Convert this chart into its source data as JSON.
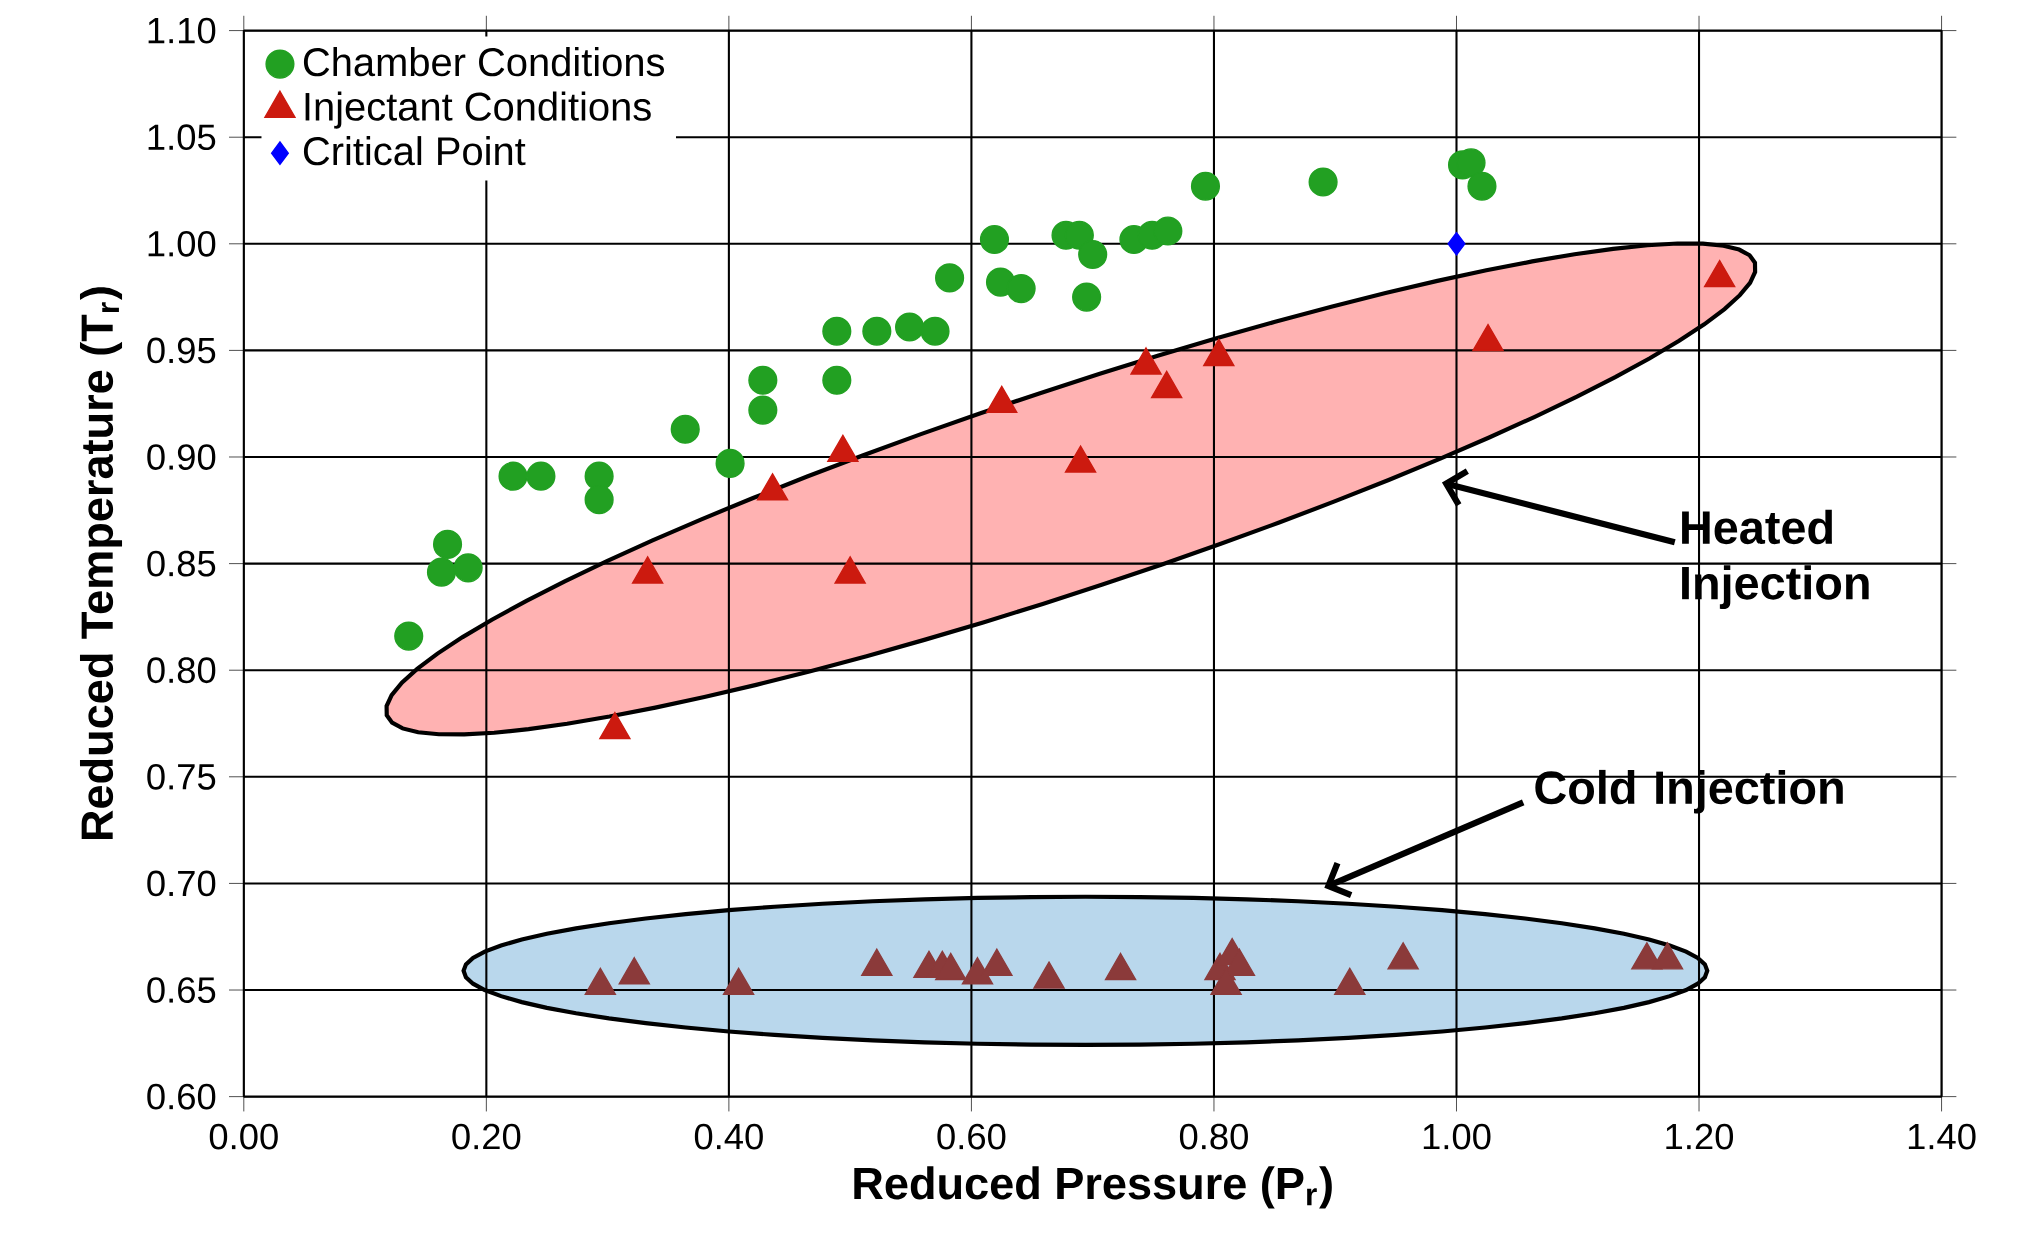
{
  "chart_data": {
    "type": "scatter",
    "xlabel": "Reduced Pressure (P$_{r}$)",
    "ylabel": "Reduced Temperature (T$_{r}$)",
    "xlim": [
      0,
      1.4
    ],
    "ylim": [
      0.6,
      1.1
    ],
    "xticks": [
      {
        "value": 0,
        "label": "0.00"
      },
      {
        "value": 0.2,
        "label": "0.20"
      },
      {
        "value": 0.4,
        "label": "0.40"
      },
      {
        "value": 0.6,
        "label": "0.60"
      },
      {
        "value": 0.8,
        "label": "0.80"
      },
      {
        "value": 1.0,
        "label": "1.00"
      },
      {
        "value": 1.2,
        "label": "1.20"
      },
      {
        "value": 1.4,
        "label": "1.40"
      }
    ],
    "yticks": [
      {
        "value": 0.6,
        "label": "0.60"
      },
      {
        "value": 0.65,
        "label": "0.65"
      },
      {
        "value": 0.7,
        "label": "0.70"
      },
      {
        "value": 0.75,
        "label": "0.75"
      },
      {
        "value": 0.8,
        "label": "0.80"
      },
      {
        "value": 0.85,
        "label": "0.85"
      },
      {
        "value": 0.9,
        "label": "0.90"
      },
      {
        "value": 0.95,
        "label": "0.95"
      },
      {
        "value": 1.0,
        "label": "1.00"
      },
      {
        "value": 1.05,
        "label": "1.05"
      },
      {
        "value": 1.1,
        "label": "1.10"
      }
    ],
    "grid": true,
    "legend": "top left",
    "series": [
      {
        "name": "Chamber Conditions",
        "color": "#22a022",
        "marker": "circle",
        "x": [
          0.136,
          0.163,
          0.168,
          0.185,
          0.222,
          0.245,
          0.293,
          0.293,
          0.364,
          0.401,
          0.428,
          0.428,
          0.489,
          0.489,
          0.522,
          0.549,
          0.57,
          0.582,
          0.619,
          0.624,
          0.641,
          0.678,
          0.689,
          0.7,
          0.695,
          0.734,
          0.749,
          0.762,
          0.793,
          0.89,
          1.005,
          1.012,
          1.021
        ],
        "values": [
          0.816,
          0.846,
          0.859,
          0.848,
          0.891,
          0.891,
          0.891,
          0.88,
          0.913,
          0.897,
          0.936,
          0.922,
          0.959,
          0.936,
          0.959,
          0.961,
          0.959,
          0.984,
          1.002,
          0.982,
          0.979,
          1.004,
          1.004,
          0.995,
          0.975,
          1.002,
          1.004,
          1.006,
          1.027,
          1.029,
          1.037,
          1.038,
          1.027
        ]
      },
      {
        "name": "Injectant Conditions",
        "color": "#cc1a0f",
        "marker": "triangle",
        "x": [
          0.306,
          0.333,
          0.436,
          0.494,
          0.5,
          0.625,
          0.69,
          0.744,
          0.761,
          0.804,
          1.026,
          1.217
        ],
        "values": [
          0.772,
          0.845,
          0.884,
          0.902,
          0.845,
          0.925,
          0.897,
          0.943,
          0.932,
          0.947,
          0.954,
          0.984
        ]
      },
      {
        "name": "Critical Point",
        "color": "#0000ff",
        "marker": "diamond",
        "x": [
          1.0
        ],
        "values": [
          1.0
        ]
      },
      {
        "color": "#8b3a3a",
        "marker": "triangle",
        "x": [
          0.294,
          0.322,
          0.408,
          0.522,
          0.565,
          0.576,
          0.583,
          0.605,
          0.615,
          0.621,
          0.664,
          0.723,
          0.805,
          0.815,
          0.821,
          0.81,
          0.912,
          0.956,
          1.157,
          1.174
        ],
        "values": [
          0.652,
          0.657,
          0.652,
          0.661,
          0.66,
          0.66,
          0.659,
          0.657,
          null,
          0.661,
          0.655,
          0.659,
          0.659,
          0.666,
          0.661,
          0.652,
          0.652,
          0.664,
          0.664,
          0.664
        ]
      }
    ],
    "annotations": [
      "Heated Injection",
      "Cold Injection"
    ]
  }
}
